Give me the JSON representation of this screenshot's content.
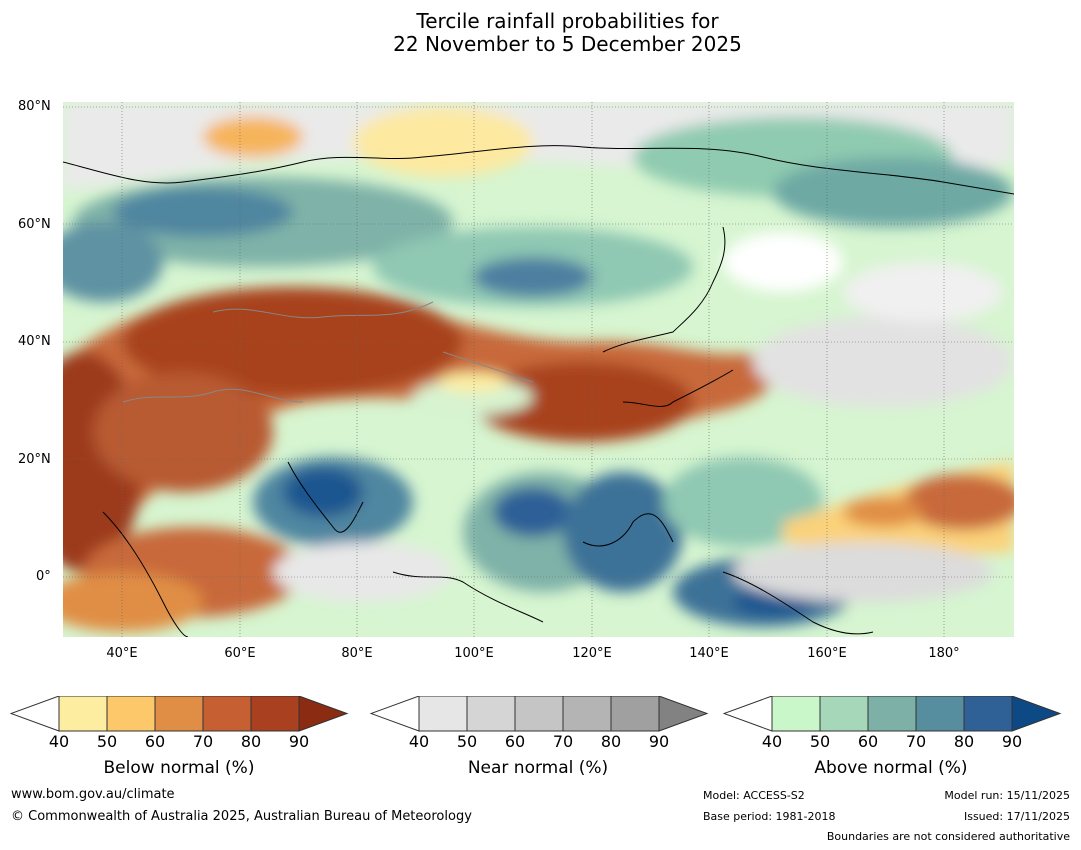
{
  "title": {
    "line1": "Tercile rainfall probabilities for",
    "line2": "22 November to 5 December 2025"
  },
  "axes": {
    "lat_labels": [
      "80°N",
      "60°N",
      "40°N",
      "20°N",
      "0°"
    ],
    "lon_labels": [
      "40°E",
      "60°E",
      "80°E",
      "100°E",
      "120°E",
      "140°E",
      "160°E",
      "180°"
    ]
  },
  "legend": {
    "below": {
      "label": "Below normal (%)",
      "ticks": [
        "40",
        "50",
        "60",
        "70",
        "80",
        "90"
      ],
      "colors": [
        "#ffffff",
        "#fdeda0",
        "#fdc869",
        "#e08e45",
        "#c65f32",
        "#a9401f",
        "#8a2b12"
      ]
    },
    "near": {
      "label": "Near normal (%)",
      "ticks": [
        "40",
        "50",
        "60",
        "70",
        "80",
        "90"
      ],
      "colors": [
        "#ffffff",
        "#e6e6e6",
        "#d5d5d5",
        "#c5c5c5",
        "#b4b4b4",
        "#a0a0a0",
        "#828282"
      ]
    },
    "above": {
      "label": "Above normal (%)",
      "ticks": [
        "40",
        "50",
        "60",
        "70",
        "80",
        "90"
      ],
      "colors": [
        "#ffffff",
        "#c9f7c9",
        "#a5d7b8",
        "#7db1a8",
        "#578e9f",
        "#2f6197",
        "#0d4a85"
      ]
    }
  },
  "footer": {
    "website": "www.bom.gov.au/climate",
    "copyright": "© Commonwealth of Australia 2025, Australian Bureau of Meteorology",
    "model": "Model: ACCESS-S2",
    "base_period": "Base period: 1981-2018",
    "model_run": "Model run: 15/11/2025",
    "issued": "Issued: 17/11/2025",
    "boundaries": "Boundaries are not considered authoritative"
  }
}
